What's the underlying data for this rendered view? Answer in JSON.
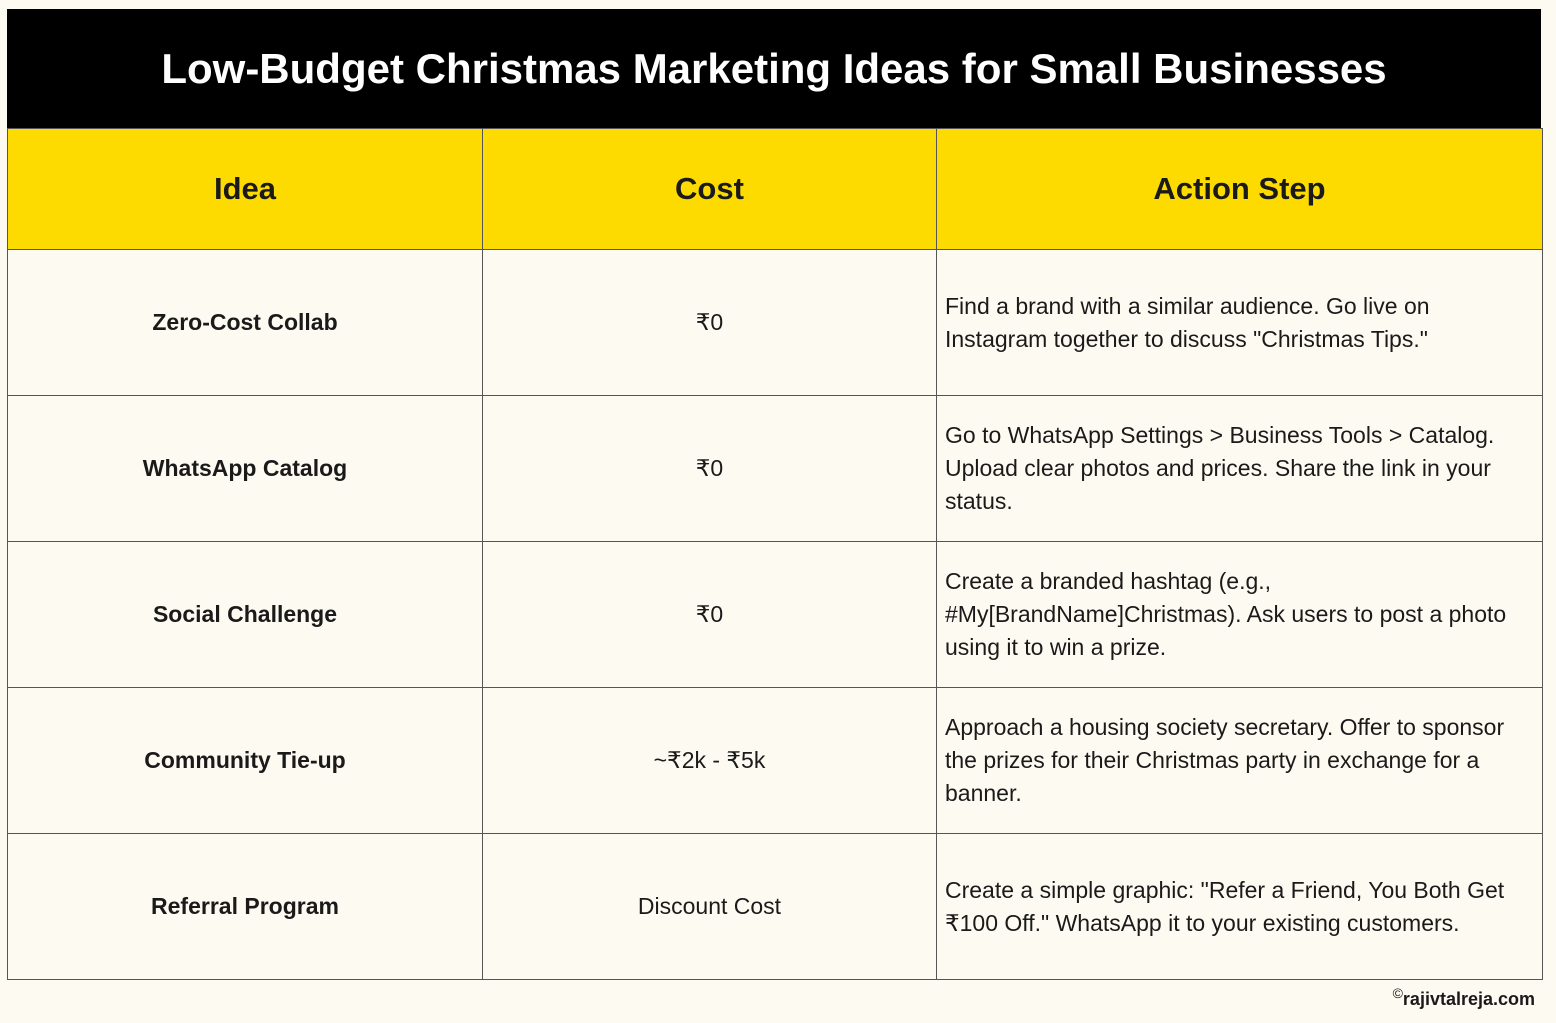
{
  "header": {
    "title": "Low-Budget Christmas Marketing Ideas for Small Businesses"
  },
  "table": {
    "columns": [
      "Idea",
      "Cost",
      "Action Step"
    ],
    "rows": [
      [
        "Zero-Cost Collab",
        "₹0",
        "Find a brand with a similar audience. Go live on Instagram together to discuss \"Christmas Tips.\""
      ],
      [
        "WhatsApp Catalog",
        "₹0",
        "Go to WhatsApp Settings > Business Tools > Catalog. Upload clear photos and prices. Share the link in your status."
      ],
      [
        "Social Challenge",
        "₹0",
        "Create a branded hashtag (e.g., #My[BrandName]Christmas). Ask users to post a photo using it to win a prize."
      ],
      [
        "Community Tie-up",
        "~₹2k - ₹5k",
        "Approach a housing society secretary. Offer to sponsor the prizes for their Christmas party in exchange for a banner."
      ],
      [
        "Referral Program",
        "Discount Cost",
        "Create a simple graphic: \"Refer a Friend, You Both Get ₹100 Off.\" WhatsApp it to your existing customers."
      ]
    ]
  },
  "footer": {
    "symbol": "©",
    "text": "rajivtalreja.com"
  }
}
